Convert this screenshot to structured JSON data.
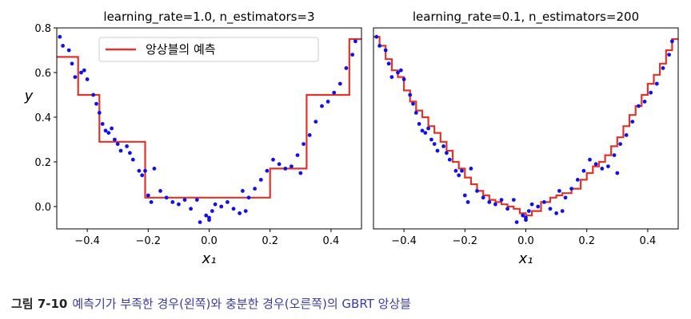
{
  "chart_data": [
    {
      "type": "scatter",
      "title": "learning_rate=1.0, n_estimators=3",
      "xlabel": "x₁",
      "ylabel": "y",
      "xlim": [
        -0.5,
        0.5
      ],
      "ylim": [
        -0.1,
        0.8
      ],
      "xticks": [
        -0.4,
        -0.2,
        0.0,
        0.2,
        0.4
      ],
      "xtick_labels": [
        "−0.4",
        "−0.2",
        "0.0",
        "0.2",
        "0.4"
      ],
      "yticks": [
        0.0,
        0.2,
        0.4,
        0.6,
        0.8
      ],
      "ytick_labels": [
        "0.0",
        "0.2",
        "0.4",
        "0.6",
        "0.8"
      ],
      "legend": {
        "placement": "upper-center",
        "entries": [
          "앙상블의 예측"
        ]
      },
      "series": [
        {
          "name": "앙상블의 예측",
          "kind": "step",
          "color": "#e0342a",
          "x": [
            -0.5,
            -0.43,
            -0.43,
            -0.36,
            -0.36,
            -0.21,
            -0.21,
            0.2,
            0.2,
            0.32,
            0.32,
            0.46,
            0.46,
            0.5
          ],
          "y": [
            0.67,
            0.67,
            0.5,
            0.5,
            0.29,
            0.29,
            0.04,
            0.04,
            0.17,
            0.17,
            0.5,
            0.5,
            0.75,
            0.75
          ]
        },
        {
          "kind": "points",
          "color": "#1010ee",
          "x": [
            -0.49,
            -0.48,
            -0.46,
            -0.45,
            -0.44,
            -0.42,
            -0.41,
            -0.4,
            -0.38,
            -0.37,
            -0.36,
            -0.35,
            -0.34,
            -0.33,
            -0.32,
            -0.31,
            -0.3,
            -0.29,
            -0.27,
            -0.25,
            -0.23,
            -0.22,
            -0.21,
            -0.2,
            -0.19,
            -0.18,
            -0.16,
            -0.14,
            -0.12,
            -0.1,
            -0.08,
            -0.06,
            -0.04,
            -0.03,
            -0.01,
            0.0,
            0.01,
            0.02,
            0.04,
            0.06,
            0.08,
            0.1,
            0.11,
            0.13,
            0.15,
            0.17,
            0.19,
            0.21,
            0.23,
            0.25,
            0.27,
            0.29,
            0.31,
            0.33,
            0.35,
            0.37,
            0.39,
            0.41,
            0.43,
            0.45,
            0.47,
            0.48,
            0.3,
            -0.26,
            0.0,
            0.12
          ],
          "y": [
            0.76,
            0.72,
            0.7,
            0.64,
            0.58,
            0.6,
            0.61,
            0.57,
            0.5,
            0.46,
            0.42,
            0.37,
            0.34,
            0.33,
            0.35,
            0.3,
            0.28,
            0.25,
            0.27,
            0.21,
            0.16,
            0.14,
            0.16,
            0.05,
            0.02,
            0.17,
            0.07,
            0.04,
            0.02,
            0.01,
            0.03,
            -0.01,
            0.03,
            -0.07,
            -0.04,
            -0.06,
            -0.02,
            0.01,
            0.0,
            0.02,
            -0.01,
            -0.03,
            0.07,
            0.04,
            0.08,
            0.12,
            0.16,
            0.21,
            0.19,
            0.17,
            0.18,
            0.23,
            0.28,
            0.32,
            0.38,
            0.45,
            0.47,
            0.51,
            0.55,
            0.62,
            0.68,
            0.74,
            0.15,
            0.24,
            -0.05,
            -0.02
          ]
        }
      ]
    },
    {
      "type": "scatter",
      "title": "learning_rate=0.1, n_estimators=200",
      "xlabel": "x₁",
      "xlim": [
        -0.5,
        0.5
      ],
      "ylim": [
        -0.1,
        0.8
      ],
      "xticks": [
        -0.4,
        -0.2,
        0.0,
        0.2,
        0.4
      ],
      "xtick_labels": [
        "−0.4",
        "−0.2",
        "0.0",
        "0.2",
        "0.4"
      ],
      "series": [
        {
          "kind": "step",
          "color": "#e0342a",
          "x": [
            -0.5,
            -0.48,
            -0.48,
            -0.46,
            -0.46,
            -0.44,
            -0.44,
            -0.42,
            -0.42,
            -0.4,
            -0.4,
            -0.38,
            -0.38,
            -0.36,
            -0.36,
            -0.34,
            -0.34,
            -0.32,
            -0.32,
            -0.3,
            -0.3,
            -0.28,
            -0.28,
            -0.26,
            -0.26,
            -0.24,
            -0.24,
            -0.22,
            -0.22,
            -0.2,
            -0.2,
            -0.18,
            -0.18,
            -0.16,
            -0.16,
            -0.14,
            -0.14,
            -0.12,
            -0.12,
            -0.1,
            -0.1,
            -0.08,
            -0.08,
            -0.06,
            -0.06,
            -0.04,
            -0.04,
            -0.02,
            -0.02,
            0.0,
            0.0,
            0.02,
            0.02,
            0.05,
            0.05,
            0.08,
            0.08,
            0.1,
            0.1,
            0.12,
            0.12,
            0.15,
            0.15,
            0.18,
            0.18,
            0.2,
            0.2,
            0.22,
            0.22,
            0.24,
            0.24,
            0.26,
            0.26,
            0.28,
            0.28,
            0.3,
            0.3,
            0.32,
            0.32,
            0.34,
            0.34,
            0.36,
            0.36,
            0.38,
            0.38,
            0.4,
            0.4,
            0.42,
            0.42,
            0.44,
            0.44,
            0.46,
            0.46,
            0.48,
            0.48,
            0.5
          ],
          "y": [
            0.76,
            0.76,
            0.72,
            0.72,
            0.66,
            0.66,
            0.61,
            0.61,
            0.58,
            0.58,
            0.52,
            0.52,
            0.47,
            0.47,
            0.43,
            0.43,
            0.4,
            0.4,
            0.36,
            0.36,
            0.33,
            0.33,
            0.29,
            0.29,
            0.25,
            0.25,
            0.2,
            0.2,
            0.17,
            0.17,
            0.13,
            0.13,
            0.1,
            0.1,
            0.07,
            0.07,
            0.05,
            0.05,
            0.03,
            0.03,
            0.02,
            0.02,
            0.01,
            0.01,
            0.0,
            0.0,
            -0.01,
            -0.01,
            -0.03,
            -0.03,
            -0.04,
            -0.04,
            -0.02,
            -0.02,
            0.02,
            0.02,
            0.04,
            0.04,
            0.05,
            0.05,
            0.06,
            0.06,
            0.08,
            0.08,
            0.12,
            0.12,
            0.15,
            0.15,
            0.18,
            0.18,
            0.2,
            0.2,
            0.23,
            0.23,
            0.27,
            0.27,
            0.31,
            0.31,
            0.36,
            0.36,
            0.41,
            0.41,
            0.45,
            0.45,
            0.5,
            0.5,
            0.55,
            0.55,
            0.59,
            0.59,
            0.64,
            0.64,
            0.7,
            0.7,
            0.75,
            0.75
          ]
        },
        {
          "kind": "points",
          "color": "#1010ee",
          "x": [
            -0.49,
            -0.48,
            -0.46,
            -0.45,
            -0.44,
            -0.42,
            -0.41,
            -0.4,
            -0.38,
            -0.37,
            -0.36,
            -0.35,
            -0.34,
            -0.33,
            -0.32,
            -0.31,
            -0.3,
            -0.29,
            -0.27,
            -0.25,
            -0.23,
            -0.22,
            -0.21,
            -0.2,
            -0.19,
            -0.18,
            -0.16,
            -0.14,
            -0.12,
            -0.1,
            -0.08,
            -0.06,
            -0.04,
            -0.03,
            -0.01,
            0.0,
            0.01,
            0.02,
            0.04,
            0.06,
            0.08,
            0.1,
            0.11,
            0.13,
            0.15,
            0.17,
            0.19,
            0.21,
            0.23,
            0.25,
            0.27,
            0.29,
            0.31,
            0.33,
            0.35,
            0.37,
            0.39,
            0.41,
            0.43,
            0.45,
            0.47,
            0.48,
            0.3,
            -0.26,
            0.0,
            0.12
          ],
          "y": [
            0.76,
            0.72,
            0.7,
            0.64,
            0.58,
            0.6,
            0.61,
            0.57,
            0.5,
            0.46,
            0.42,
            0.37,
            0.34,
            0.33,
            0.35,
            0.3,
            0.28,
            0.25,
            0.27,
            0.21,
            0.16,
            0.14,
            0.16,
            0.05,
            0.02,
            0.17,
            0.07,
            0.04,
            0.02,
            0.01,
            0.03,
            -0.01,
            0.03,
            -0.07,
            -0.04,
            -0.06,
            -0.02,
            0.01,
            0.0,
            0.02,
            -0.01,
            -0.03,
            0.07,
            0.04,
            0.08,
            0.12,
            0.16,
            0.21,
            0.19,
            0.17,
            0.18,
            0.23,
            0.28,
            0.32,
            0.38,
            0.45,
            0.47,
            0.51,
            0.55,
            0.62,
            0.68,
            0.74,
            0.15,
            0.24,
            -0.05,
            -0.02
          ]
        }
      ]
    }
  ],
  "caption": {
    "number": "그림 7-10",
    "text": "예측기가 부족한 경우(왼쪽)와 충분한 경우(오른쪽)의 GBRT 앙상블"
  }
}
